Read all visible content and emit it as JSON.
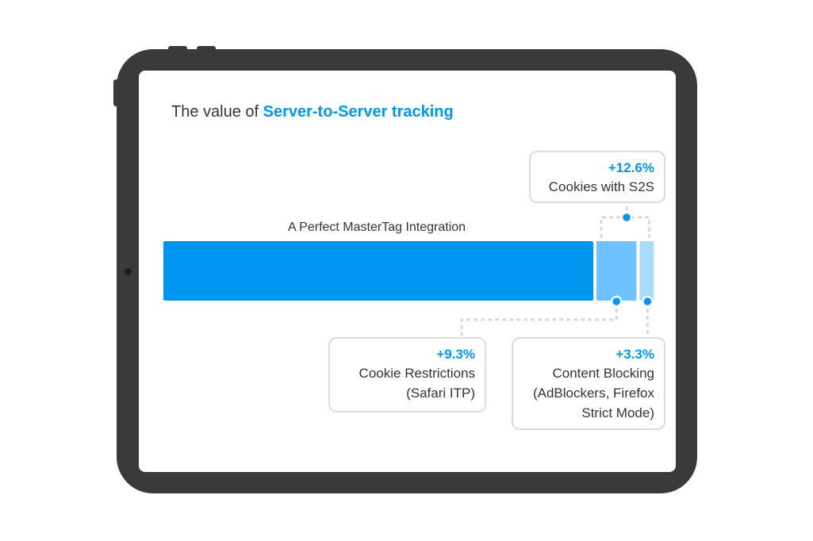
{
  "title": {
    "prefix": "The value of ",
    "highlight": "Server-to-Server tracking"
  },
  "colors": {
    "accent": "#0096f0",
    "segment_base": "#0096f0",
    "segment_restrictions": "#6dc2ff",
    "segment_blocking": "#a8dcff",
    "connector": "#d9d9d9",
    "bezel": "#3a3a3a"
  },
  "chart_data": {
    "type": "bar",
    "orientation": "horizontal-stacked",
    "bar_label": "A Perfect MasterTag Integration",
    "segments": [
      {
        "name": "A Perfect MasterTag Integration",
        "value": 100
      },
      {
        "name": "Cookie Restrictions (Safari ITP)",
        "value": 9.3
      },
      {
        "name": "Content Blocking (AdBlockers, Firefox Strict Mode)",
        "value": 3.3
      }
    ],
    "annotations": [
      {
        "value_label": "+12.6%",
        "text": "Cookies with S2S"
      },
      {
        "value_label": "+9.3%",
        "text": "Cookie Restrictions\n(Safari ITP)"
      },
      {
        "value_label": "+3.3%",
        "text": "Content Blocking\n(AdBlockers, Firefox\nStrict Mode)"
      }
    ]
  }
}
